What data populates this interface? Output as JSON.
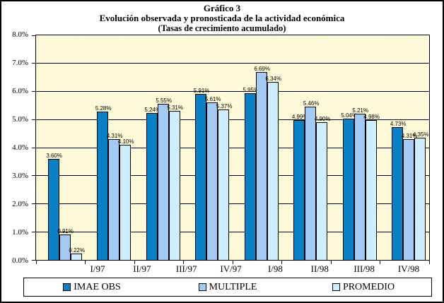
{
  "title": {
    "line1": "Gráfico 3",
    "line2": "Evolución observada y pronosticada de la actividad económica",
    "line3": "(Tasas de crecimiento acumulado)"
  },
  "chart_data": {
    "type": "bar",
    "categories": [
      "I/97",
      "II/97",
      "III/97",
      "IV/97",
      "I/98",
      "II/98",
      "III/98",
      "IV/98"
    ],
    "series": [
      {
        "name": "IMAE OBS",
        "color": "#0980c4",
        "values": [
          3.6,
          5.28,
          5.24,
          5.91,
          5.95,
          4.99,
          5.04,
          4.73
        ],
        "labels": [
          "3.60%",
          "5.28%",
          "5.24%",
          "5.91%",
          "5.95%",
          "4.99%",
          "5.04%",
          "4.73%"
        ]
      },
      {
        "name": "MULTIPLE",
        "color": "#a3caf2",
        "values": [
          0.91,
          4.31,
          5.55,
          5.61,
          6.69,
          5.46,
          5.21,
          4.31
        ],
        "labels": [
          "0.91%",
          "4.31%",
          "5.55%",
          "5.61%",
          "6.69%",
          "5.46%",
          "5.21%",
          "4.31%"
        ]
      },
      {
        "name": "PROMEDIO",
        "color": "#ceedfe",
        "values": [
          0.22,
          4.1,
          5.31,
          5.37,
          6.34,
          4.9,
          4.98,
          4.35
        ],
        "labels": [
          "0.22%",
          "4.10%",
          "5.31%",
          "5.37%",
          "6.34%",
          "4.90%",
          "4.98%",
          "4.35%"
        ]
      }
    ],
    "ylim": [
      0,
      8
    ],
    "ytick_labels": [
      "8.0%",
      "7.0%",
      "6.0%",
      "5.0%",
      "4.0%",
      "3.0%",
      "2.0%",
      "1.0%",
      "0.0%"
    ],
    "xlabel": "",
    "ylabel": "",
    "grid": true,
    "legend_position": "bottom",
    "plot_background": "#fcf9cf"
  }
}
